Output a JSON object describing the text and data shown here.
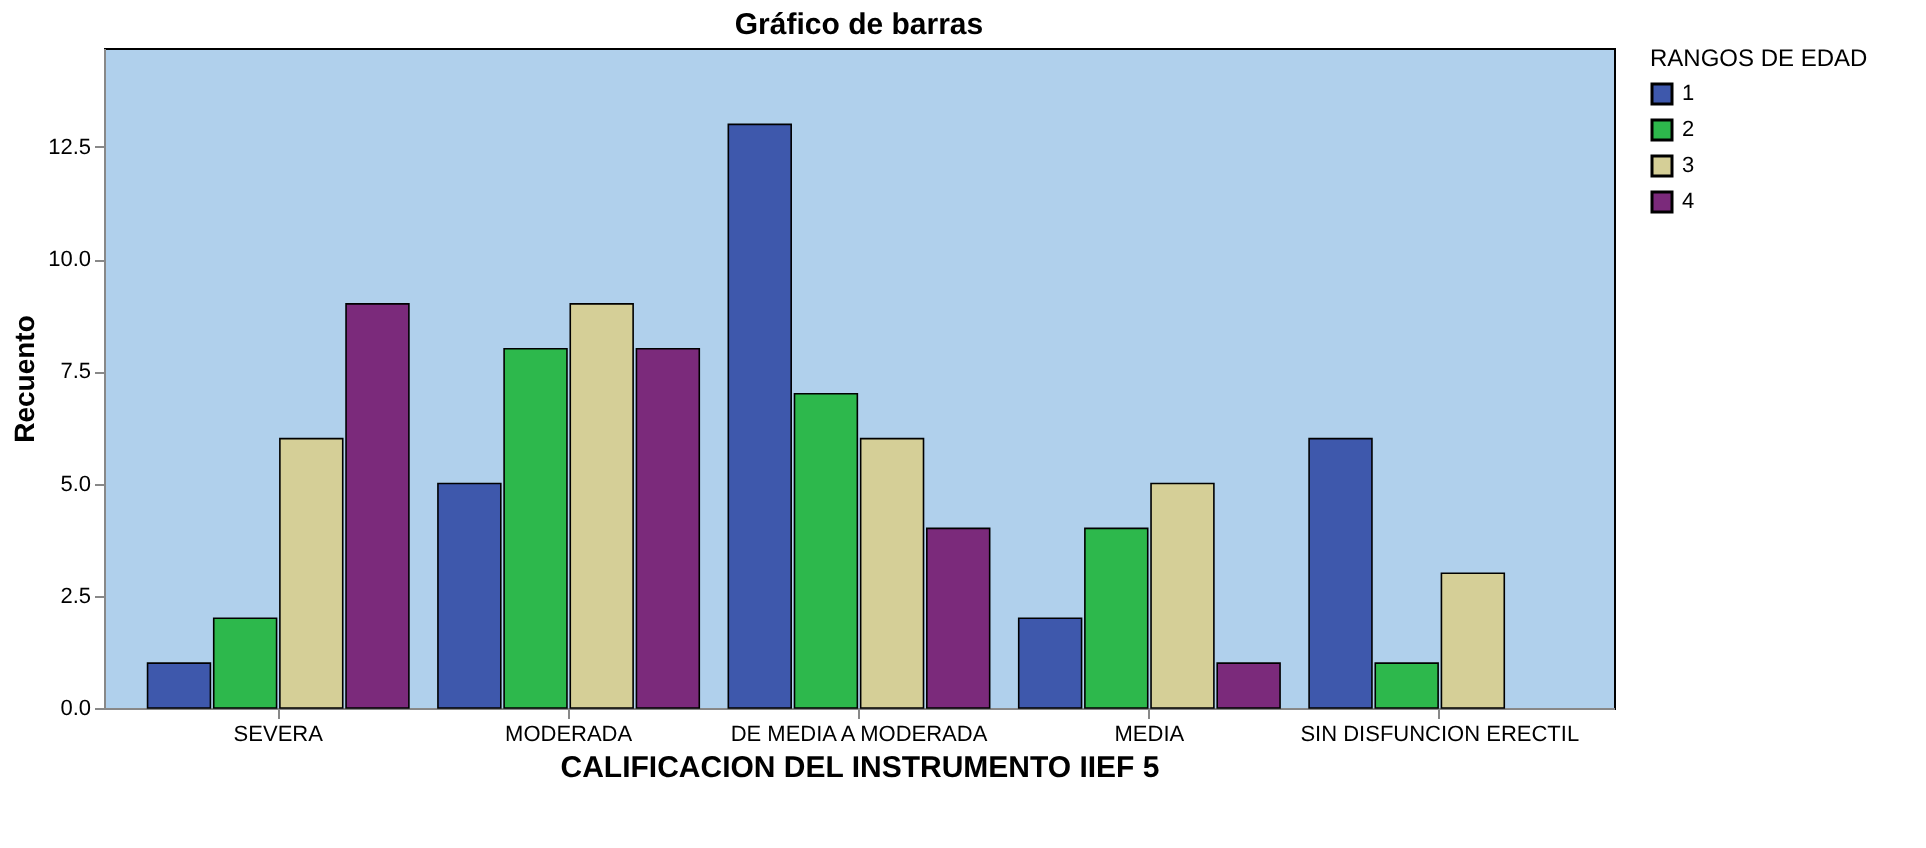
{
  "chart_data": {
    "type": "bar",
    "title": "Gráfico de barras",
    "xlabel": "CALIFICACION DEL INSTRUMENTO IIEF 5",
    "ylabel": "Recuento",
    "legend_title": "RANGOS DE EDAD",
    "categories": [
      "SEVERA",
      "MODERADA",
      "DE MEDIA A MODERADA",
      "MEDIA",
      "SIN DISFUNCION ERECTIL"
    ],
    "series": [
      {
        "name": "1",
        "color": "#3e58ac",
        "values": [
          1,
          5,
          13,
          2,
          6
        ]
      },
      {
        "name": "2",
        "color": "#2db84c",
        "values": [
          2,
          8,
          7,
          4,
          1
        ]
      },
      {
        "name": "3",
        "color": "#d5cf97",
        "values": [
          6,
          9,
          6,
          5,
          3
        ]
      },
      {
        "name": "4",
        "color": "#7b2a7b",
        "values": [
          9,
          8,
          4,
          1,
          null
        ]
      }
    ],
    "ylim": [
      0,
      14.7
    ],
    "yticks": [
      {
        "value": 0,
        "label": "0.0"
      },
      {
        "value": 2.5,
        "label": "2.5"
      },
      {
        "value": 5,
        "label": "5.0"
      },
      {
        "value": 7.5,
        "label": "7.5"
      },
      {
        "value": 10,
        "label": "10.0"
      },
      {
        "value": 12.5,
        "label": "12.5"
      }
    ],
    "grid": false,
    "legend": "top right"
  }
}
